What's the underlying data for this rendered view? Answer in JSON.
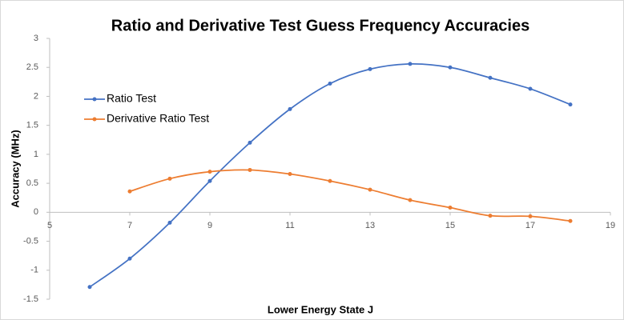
{
  "chart_data": {
    "type": "scatter",
    "title": "Ratio and Derivative Test Guess Frequency Accuracies",
    "xlabel": "Lower Energy State J",
    "ylabel": "Accuracy (MHz)",
    "xlim": [
      5,
      19
    ],
    "xticks": [
      5,
      7,
      9,
      11,
      13,
      15,
      17,
      19
    ],
    "ylim": [
      -1.5,
      3
    ],
    "yticks": [
      3,
      2.5,
      2,
      1.5,
      1,
      0.5,
      0,
      -0.5,
      -1,
      -1.5
    ],
    "grid": false,
    "smooth": true,
    "markers": true,
    "legend": "upper left",
    "series": [
      {
        "name": "Ratio Test",
        "color": "#4472c4",
        "x": [
          6,
          7,
          8,
          9,
          10,
          11,
          12,
          13,
          14,
          15,
          16,
          17,
          18
        ],
        "values": [
          -1.29,
          -0.8,
          -0.18,
          0.54,
          1.2,
          1.78,
          2.22,
          2.47,
          2.56,
          2.5,
          2.32,
          2.13,
          1.86
        ]
      },
      {
        "name": "Derivative Ratio Test",
        "color": "#ed7d31",
        "x": [
          7,
          8,
          9,
          10,
          11,
          12,
          13,
          14,
          15,
          16,
          17,
          18
        ],
        "values": [
          0.36,
          0.58,
          0.7,
          0.73,
          0.66,
          0.54,
          0.39,
          0.21,
          0.08,
          -0.06,
          -0.07,
          -0.15
        ]
      }
    ]
  }
}
